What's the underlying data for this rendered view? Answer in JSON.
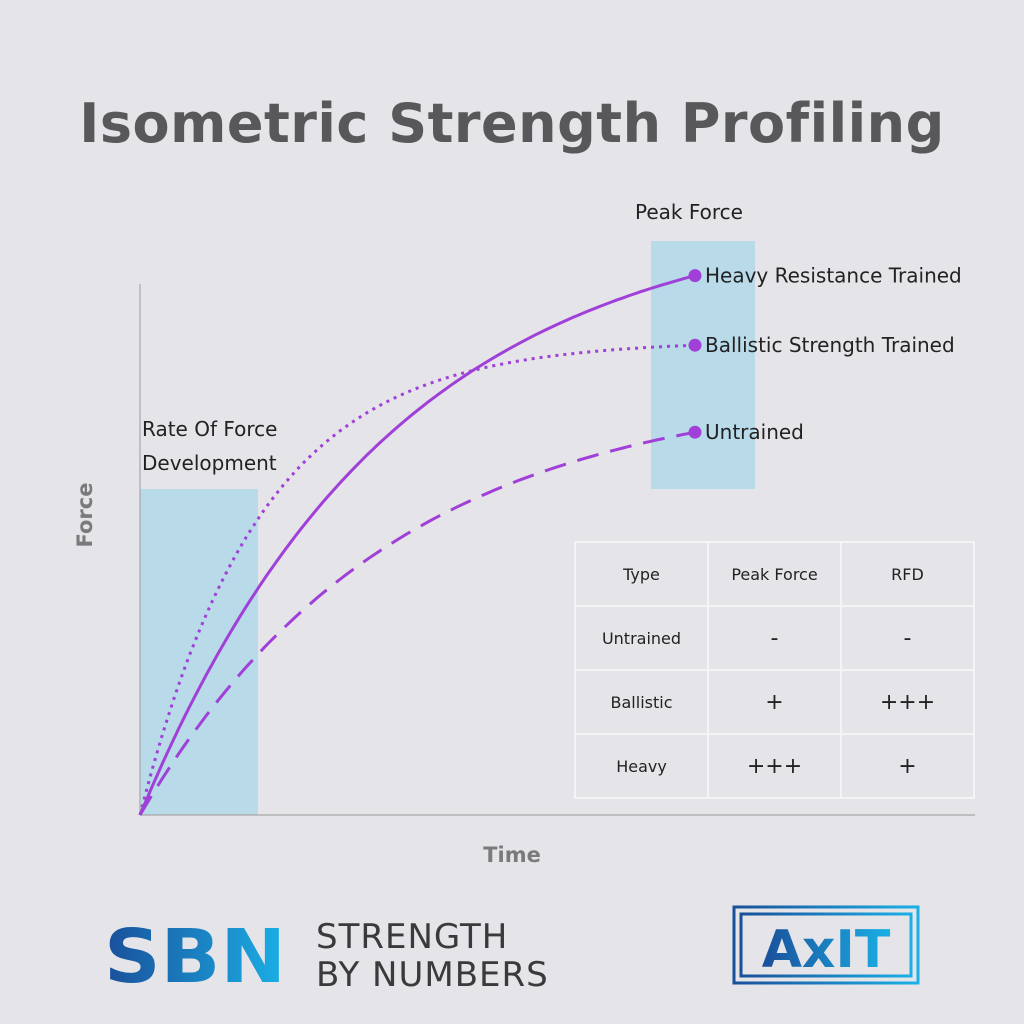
{
  "title": "Isometric Strength Profiling",
  "chart_data": {
    "type": "line",
    "xlabel": "Time",
    "ylabel": "Force",
    "annotations": {
      "rfd": [
        "Rate Of Force",
        "Development"
      ],
      "peak": "Peak Force"
    },
    "series": [
      {
        "name": "Heavy Resistance Trained",
        "style": "solid",
        "peak": 0.93,
        "k": 2.2
      },
      {
        "name": "Ballistic Strength Trained",
        "style": "dotted",
        "peak": 0.81,
        "k": 4.6
      },
      {
        "name": "Untrained",
        "style": "dashed",
        "peak": 0.66,
        "k": 2.2
      }
    ],
    "colors": {
      "line": "#a040d8",
      "highlight": "#b8dae9",
      "axis": "#a8a8a8"
    }
  },
  "table": {
    "headers": [
      "Type",
      "Peak Force",
      "RFD"
    ],
    "rows": [
      [
        "Untrained",
        "-",
        "-"
      ],
      [
        "Ballistic",
        "+",
        "+++"
      ],
      [
        "Heavy",
        "+++",
        "+"
      ]
    ]
  },
  "logos": {
    "sbn_mark": "SBN",
    "sbn_line1": "STRENGTH",
    "sbn_line2": "BY NUMBERS",
    "axit": "AxIT"
  }
}
